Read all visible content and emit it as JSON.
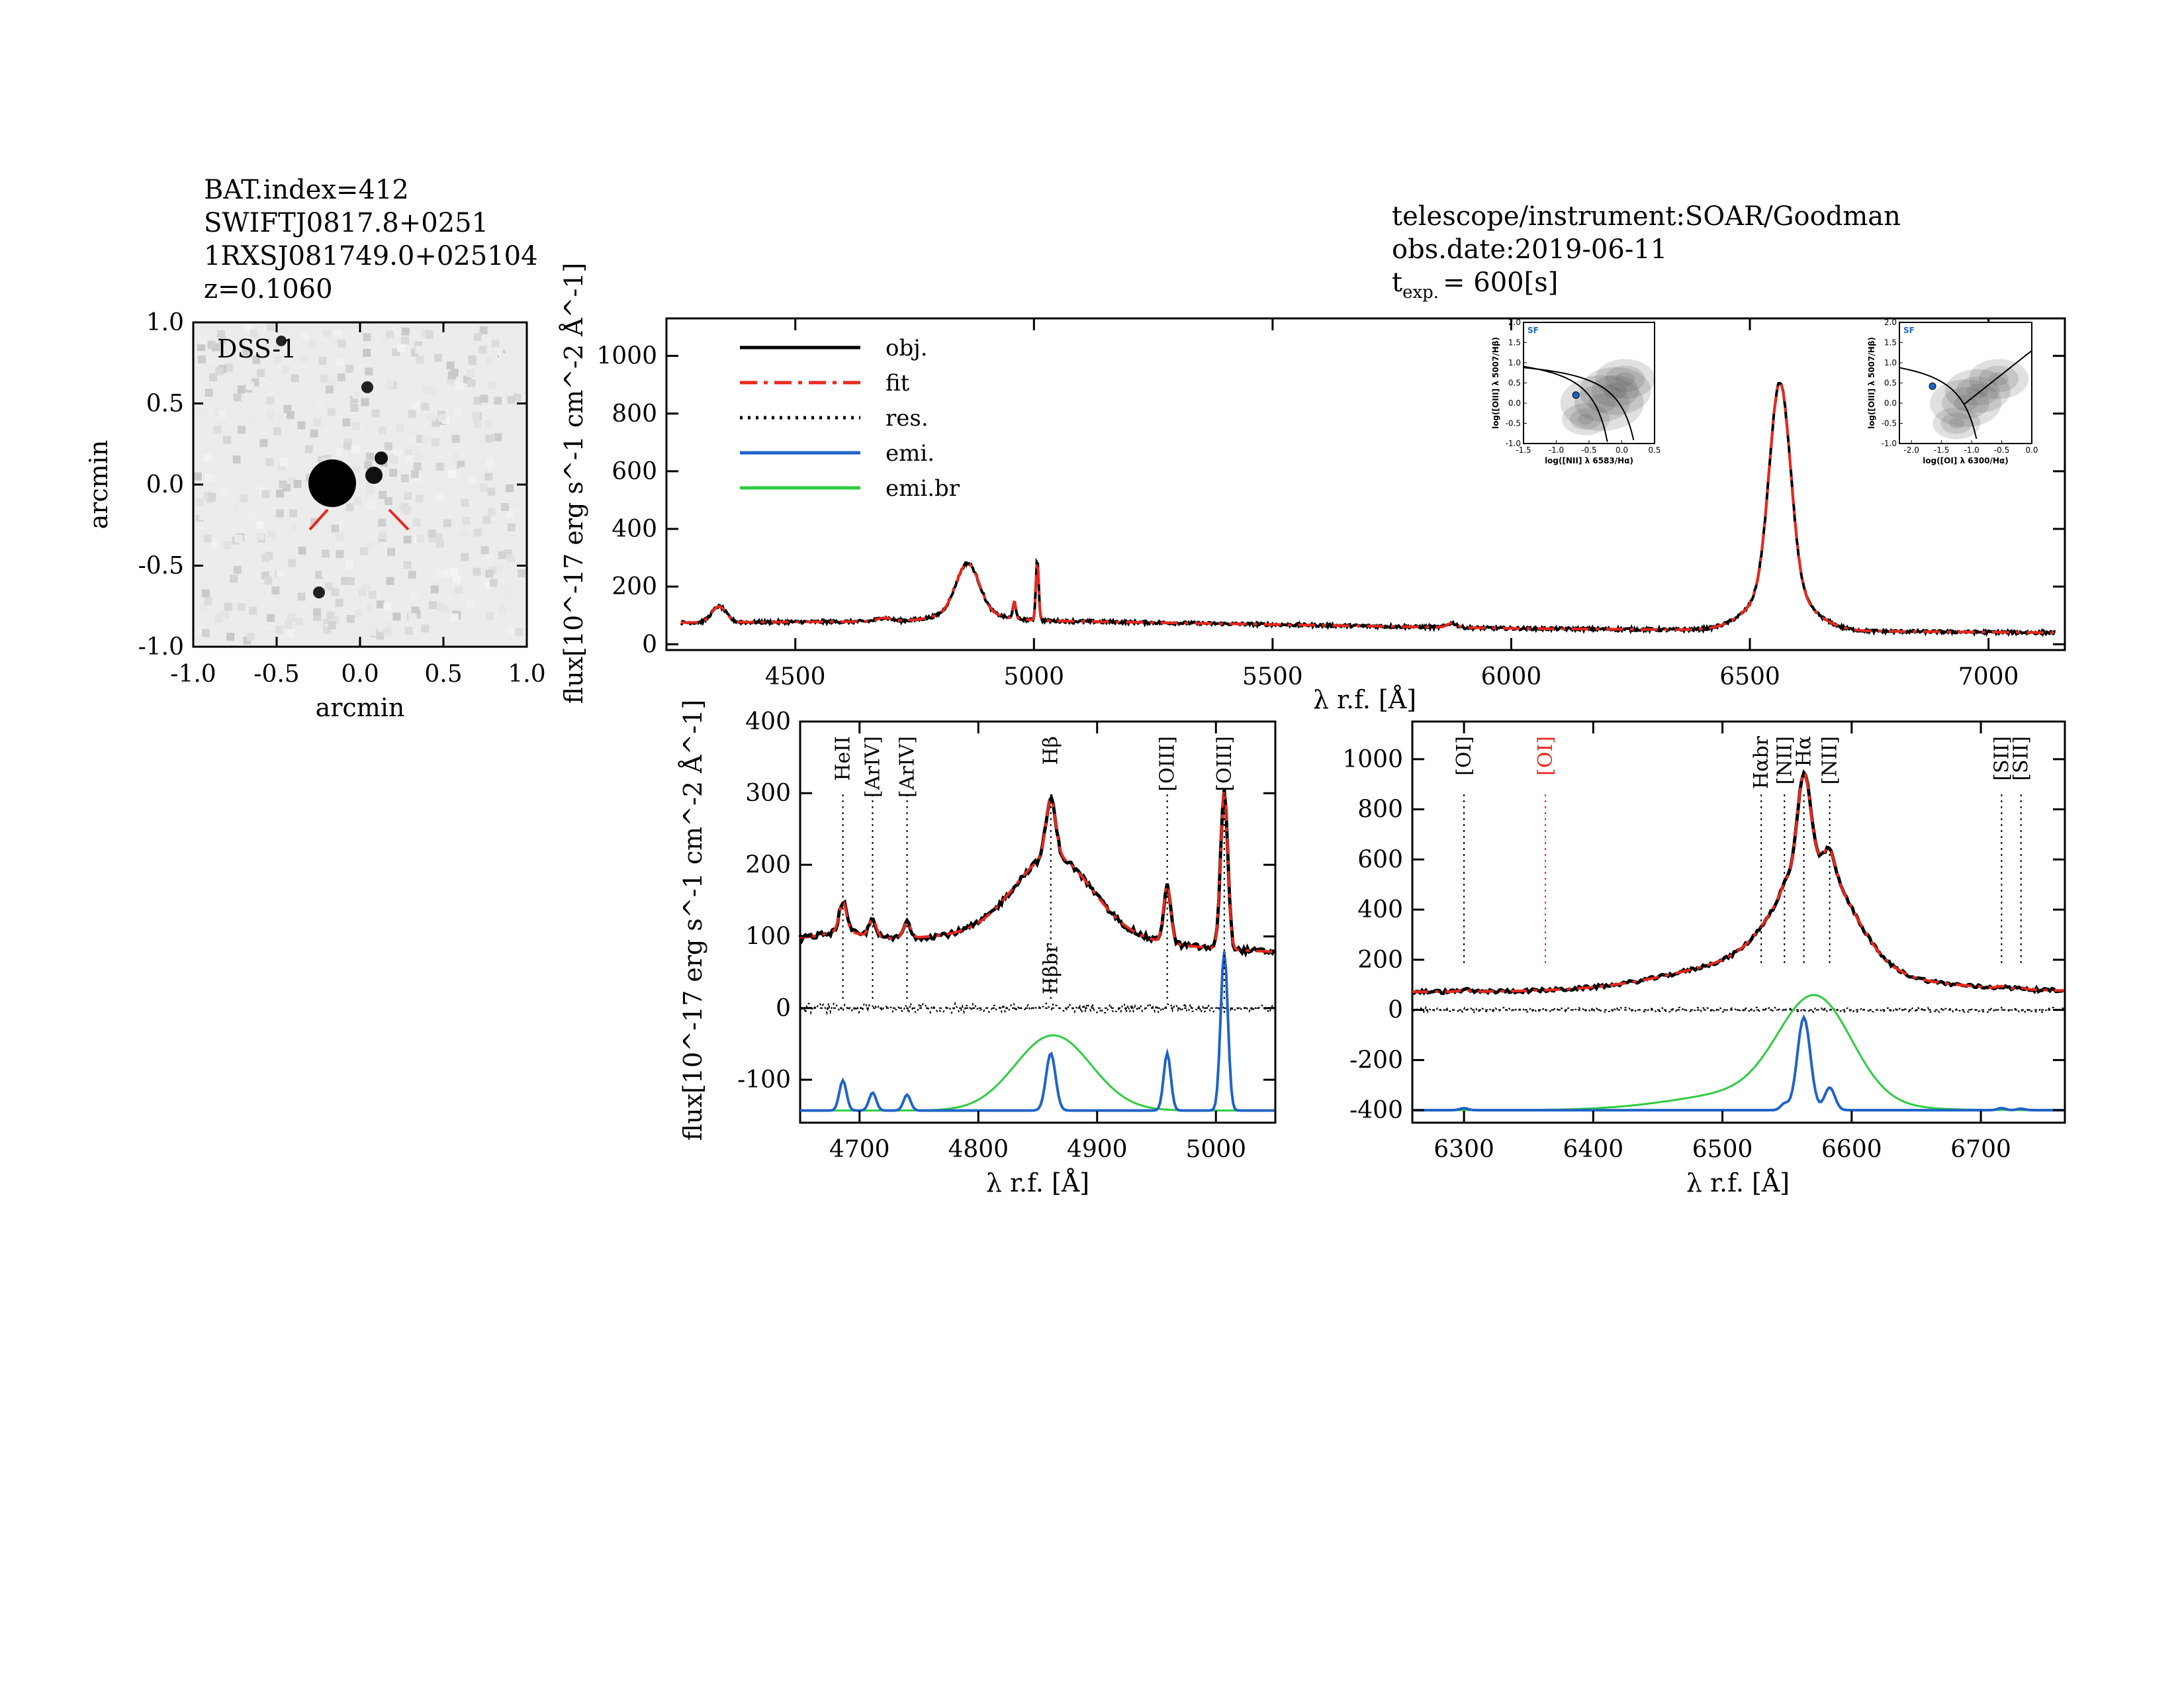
{
  "header_left": {
    "bat_index": "BAT.index=412",
    "swift": "SWIFTJ0817.8+0251",
    "counterpart": "1RXSJ081749.0+025104",
    "redshift": "z=0.1060"
  },
  "header_right": {
    "instrument": "telescope/instrument:SOAR/Goodman",
    "obs_date": "obs.date:2019-06-11",
    "texp_prefix": "t",
    "texp_sub": "exp.",
    "texp_value": "= 600[s]"
  },
  "colors": {
    "obj": "#000000",
    "fit": "#e8281e",
    "res": "#000000",
    "emi": "#1f63c8",
    "emi_br": "#2ecc40",
    "marker": "#e8281e",
    "bpt_dot": "#1f63c8"
  },
  "image_panel": {
    "label": "DSS-1",
    "xlabel": "arcmin",
    "ylabel": "arcmin",
    "xticks": [
      "-1.0",
      "-0.5",
      "0.0",
      "0.5",
      "1.0"
    ],
    "yticks": [
      "1.0",
      "0.5",
      "0.0",
      "-0.5",
      "-1.0"
    ]
  },
  "chart_data": [
    {
      "type": "line",
      "panel": "full-spectrum",
      "xlabel": "λ r.f. [Å]",
      "ylabel": "flux[10^-17 erg s^-1 cm^-2 Å^-1]",
      "xlim": [
        4230,
        7160
      ],
      "ylim": [
        -20,
        1130
      ],
      "xticks": [
        4500,
        5000,
        5500,
        6000,
        6500,
        7000
      ],
      "yticks": [
        0,
        200,
        400,
        600,
        800,
        1000
      ],
      "legend": [
        "obj.",
        "fit",
        "res.",
        "emi.",
        "emi.br"
      ],
      "legend_position": "top-left",
      "features": [
        {
          "center": 4340,
          "amp": 55,
          "sigma": 15
        },
        {
          "center": 4686,
          "amp": 12,
          "sigma": 15
        },
        {
          "center": 4861,
          "amp": 170,
          "sigma": 24
        },
        {
          "center": 4959,
          "amp": 60,
          "sigma": 3
        },
        {
          "center": 5007,
          "amp": 210,
          "sigma": 3
        },
        {
          "center": 5876,
          "amp": 15,
          "sigma": 10
        },
        {
          "center": 6563,
          "amp": 720,
          "sigma": 22
        }
      ],
      "continuum": [
        [
          4230,
          75
        ],
        [
          5000,
          82
        ],
        [
          6000,
          55
        ],
        [
          7160,
          40
        ]
      ]
    },
    {
      "type": "line",
      "panel": "hbeta-region",
      "xlabel": "λ r.f. [Å]",
      "ylabel": "flux[10^-17 erg s^-1 cm^-2 Å^-1]",
      "xlim": [
        4650,
        5050
      ],
      "ylim": [
        -160,
        400
      ],
      "xticks": [
        4700,
        4800,
        4900,
        5000
      ],
      "yticks": [
        -100,
        0,
        100,
        200,
        300,
        400
      ],
      "emi_offset": -143,
      "broad_offset": -143,
      "lines": [
        {
          "label": "HeII",
          "x": 4686
        },
        {
          "label": "[ArIV]",
          "x": 4711
        },
        {
          "label": "[ArIV]",
          "x": 4740
        },
        {
          "label": "Hβ",
          "x": 4861
        },
        {
          "label": "[OIII]",
          "x": 4959
        },
        {
          "label": "[OIII]",
          "x": 5007
        }
      ],
      "broad_label": {
        "label": "Hβbr",
        "x": 4861
      },
      "emission": [
        {
          "center": 4686,
          "amp": 42,
          "sigma": 3
        },
        {
          "center": 4711,
          "amp": 25,
          "sigma": 3
        },
        {
          "center": 4740,
          "amp": 22,
          "sigma": 3
        },
        {
          "center": 4861,
          "amp": 80,
          "sigma": 4
        },
        {
          "center": 4959,
          "amp": 80,
          "sigma": 3
        },
        {
          "center": 5007,
          "amp": 222,
          "sigma": 3
        }
      ],
      "broad": [
        {
          "center": 4863,
          "amp": 105,
          "sigma": 32
        }
      ]
    },
    {
      "type": "line",
      "panel": "halpha-region",
      "xlabel": "λ r.f. [Å]",
      "ylabel": "",
      "xlim": [
        6260,
        6765
      ],
      "ylim": [
        -450,
        1150
      ],
      "xticks": [
        6300,
        6400,
        6500,
        6600,
        6700
      ],
      "yticks": [
        -400,
        -200,
        0,
        200,
        400,
        600,
        800,
        1000
      ],
      "emi_offset": -400,
      "broad_offset": -400,
      "lines": [
        {
          "label": "[OI]",
          "x": 6300,
          "color": "#000000"
        },
        {
          "label": "[OI]",
          "x": 6363,
          "color": "#e8281e"
        },
        {
          "label": "Hαbr",
          "x": 6530,
          "color": "#000000"
        },
        {
          "label": "[NII]",
          "x": 6548,
          "color": "#000000"
        },
        {
          "label": "Hα",
          "x": 6563,
          "color": "#000000"
        },
        {
          "label": "[NII]",
          "x": 6583,
          "color": "#000000"
        },
        {
          "label": "[SII]",
          "x": 6716,
          "color": "#000000"
        },
        {
          "label": "[SII]",
          "x": 6731,
          "color": "#000000"
        }
      ],
      "emission": [
        {
          "center": 6300,
          "amp": 8,
          "sigma": 3
        },
        {
          "center": 6548,
          "amp": 25,
          "sigma": 3
        },
        {
          "center": 6563,
          "amp": 370,
          "sigma": 5
        },
        {
          "center": 6583,
          "amp": 90,
          "sigma": 4
        },
        {
          "center": 6716,
          "amp": 8,
          "sigma": 3
        },
        {
          "center": 6731,
          "amp": 6,
          "sigma": 3
        }
      ],
      "broad": [
        {
          "center": 6572,
          "amp": 400,
          "sigma": 28
        },
        {
          "center": 6530,
          "amp": 75,
          "sigma": 60
        }
      ]
    },
    {
      "type": "scatter",
      "panel": "bpt-nii",
      "label": "SF",
      "xlabel": "log([NII] λ 6583/Hα)",
      "ylabel": "log([OIII] λ 5007/Hβ)",
      "xlim": [
        -1.5,
        0.5
      ],
      "ylim": [
        -1.0,
        2.0
      ],
      "xticks": [
        "-1.5",
        "-1.0",
        "-0.5",
        "0.0",
        "0.5"
      ],
      "yticks": [
        "2.0",
        "1.5",
        "1.0",
        "0.5",
        "0.0",
        "-0.5",
        "-1.0"
      ],
      "point": [
        -0.7,
        0.2
      ]
    },
    {
      "type": "scatter",
      "panel": "bpt-oi",
      "label": "SF",
      "xlabel": "log([OI] λ 6300/Hα)",
      "ylabel": "log([OIII] λ 5007/Hβ)",
      "xlim": [
        -2.2,
        0.0
      ],
      "ylim": [
        -1.0,
        2.0
      ],
      "xticks": [
        "-2.0",
        "-1.5",
        "-1.0",
        "-0.5",
        "0.0"
      ],
      "yticks": [
        "2.0",
        "1.5",
        "1.0",
        "0.5",
        "0.0",
        "-0.5",
        "-1.0"
      ],
      "point": [
        -1.65,
        0.42
      ]
    }
  ]
}
